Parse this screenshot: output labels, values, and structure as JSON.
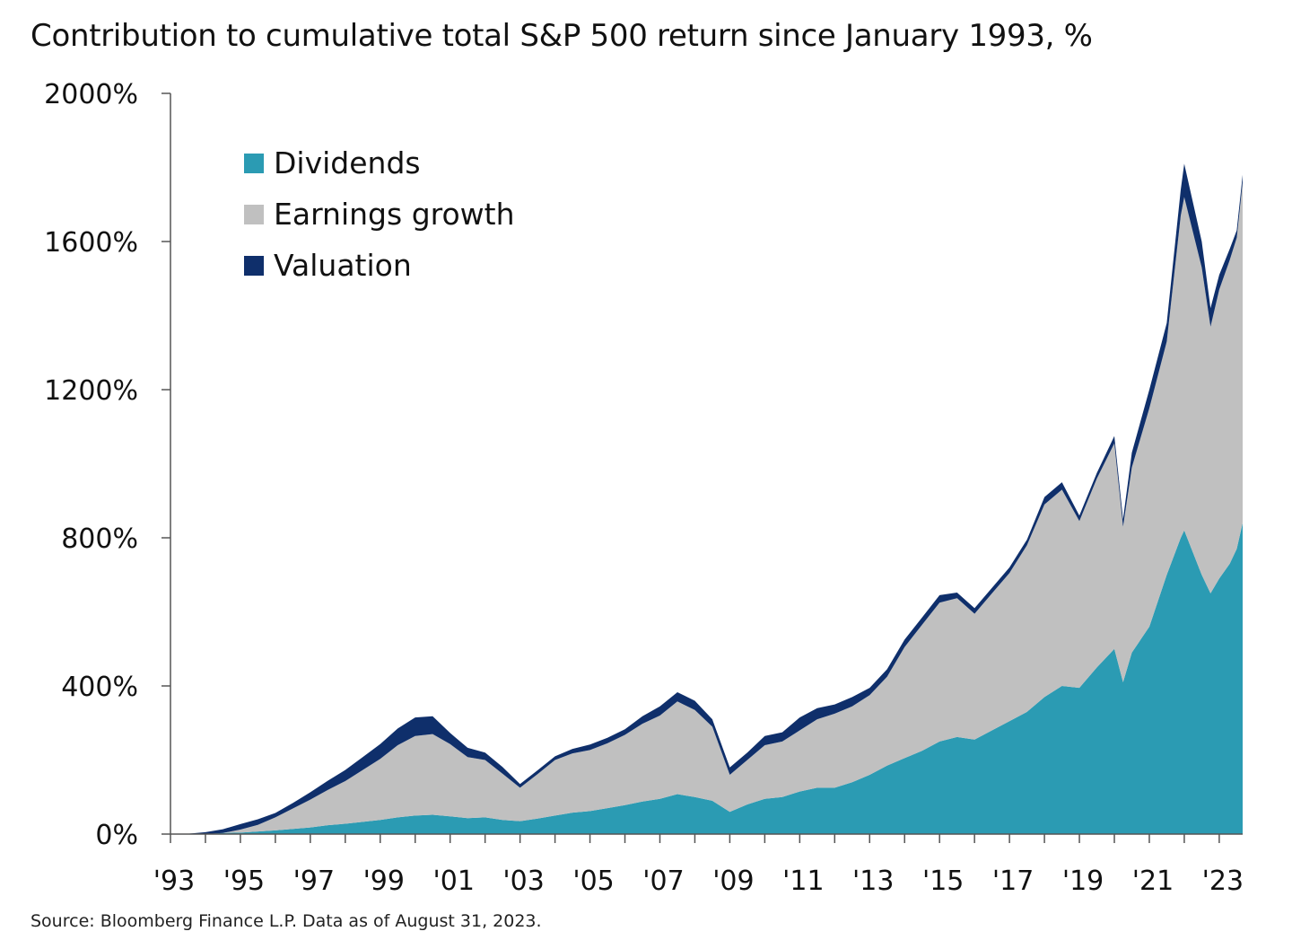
{
  "title": "Contribution to cumulative total S&P 500 return since January 1993, %",
  "source": "Source: Bloomberg Finance L.P. Data as of August 31, 2023.",
  "colors": {
    "dividends": "#2b9bb3",
    "earnings_growth": "#c0c0c0",
    "valuation": "#0f2f6b",
    "axis": "#555555"
  },
  "chart_data": {
    "type": "area",
    "stacking": "stacked",
    "title": "Contribution to cumulative total S&P 500 return since January 1993, %",
    "xlabel": "",
    "ylabel": "",
    "ylim": [
      0,
      2000
    ],
    "xlim": [
      1993.0,
      2023.67
    ],
    "y_ticks": [
      0,
      400,
      800,
      1200,
      1600,
      2000
    ],
    "y_tick_labels": [
      "0%",
      "400%",
      "800%",
      "1200%",
      "1600%",
      "2000%"
    ],
    "x_ticks": [
      1993,
      1995,
      1997,
      1999,
      2001,
      2003,
      2005,
      2007,
      2009,
      2011,
      2013,
      2015,
      2017,
      2019,
      2021,
      2023
    ],
    "x_tick_labels": [
      "'93",
      "'95",
      "'97",
      "'99",
      "'01",
      "'03",
      "'05",
      "'07",
      "'09",
      "'11",
      "'13",
      "'15",
      "'17",
      "'19",
      "'21",
      "'23"
    ],
    "legend_position": "top-left",
    "legend": [
      "Dividends",
      "Earnings growth",
      "Valuation"
    ],
    "x": [
      1993.0,
      1993.5,
      1994.0,
      1994.5,
      1995.0,
      1995.5,
      1996.0,
      1996.5,
      1997.0,
      1997.5,
      1998.0,
      1998.5,
      1999.0,
      1999.5,
      2000.0,
      2000.5,
      2001.0,
      2001.5,
      2002.0,
      2002.5,
      2003.0,
      2003.5,
      2004.0,
      2004.5,
      2005.0,
      2005.5,
      2006.0,
      2006.5,
      2007.0,
      2007.5,
      2008.0,
      2008.5,
      2009.0,
      2009.5,
      2010.0,
      2010.5,
      2011.0,
      2011.5,
      2012.0,
      2012.5,
      2013.0,
      2013.5,
      2014.0,
      2014.5,
      2015.0,
      2015.5,
      2016.0,
      2016.5,
      2017.0,
      2017.5,
      2018.0,
      2018.5,
      2019.0,
      2019.5,
      2020.0,
      2020.25,
      2020.5,
      2021.0,
      2021.5,
      2021.9,
      2022.0,
      2022.5,
      2022.75,
      2023.0,
      2023.3,
      2023.5,
      2023.67
    ],
    "series": [
      {
        "name": "Dividends",
        "values": [
          0,
          1,
          2,
          3,
          4,
          7,
          10,
          14,
          18,
          24,
          28,
          33,
          38,
          45,
          50,
          52,
          48,
          43,
          45,
          38,
          35,
          42,
          50,
          58,
          62,
          70,
          78,
          88,
          95,
          108,
          100,
          90,
          60,
          80,
          95,
          100,
          115,
          125,
          125,
          140,
          160,
          185,
          205,
          225,
          250,
          262,
          255,
          280,
          305,
          330,
          370,
          400,
          395,
          450,
          500,
          410,
          490,
          560,
          700,
          800,
          820,
          700,
          650,
          690,
          730,
          770,
          840
        ]
      },
      {
        "name": "Earnings growth",
        "values": [
          0,
          -1,
          -2,
          0,
          8,
          18,
          35,
          55,
          75,
          95,
          115,
          140,
          165,
          195,
          215,
          218,
          195,
          165,
          155,
          125,
          90,
          120,
          150,
          160,
          165,
          175,
          190,
          210,
          225,
          250,
          235,
          200,
          100,
          120,
          145,
          150,
          165,
          185,
          200,
          205,
          215,
          240,
          300,
          340,
          375,
          375,
          340,
          370,
          400,
          450,
          520,
          530,
          450,
          510,
          555,
          420,
          500,
          590,
          630,
          870,
          900,
          830,
          720,
          780,
          820,
          840,
          920
        ]
      },
      {
        "name": "Valuation",
        "values": [
          0,
          1,
          5,
          10,
          15,
          15,
          12,
          15,
          20,
          25,
          30,
          35,
          40,
          45,
          50,
          48,
          30,
          25,
          20,
          18,
          10,
          10,
          10,
          12,
          15,
          15,
          15,
          20,
          25,
          25,
          25,
          20,
          20,
          20,
          25,
          25,
          35,
          30,
          25,
          25,
          20,
          20,
          20,
          20,
          20,
          15,
          15,
          15,
          15,
          15,
          20,
          20,
          15,
          15,
          20,
          20,
          40,
          50,
          50,
          70,
          90,
          70,
          50,
          40,
          30,
          20,
          20
        ]
      }
    ]
  }
}
